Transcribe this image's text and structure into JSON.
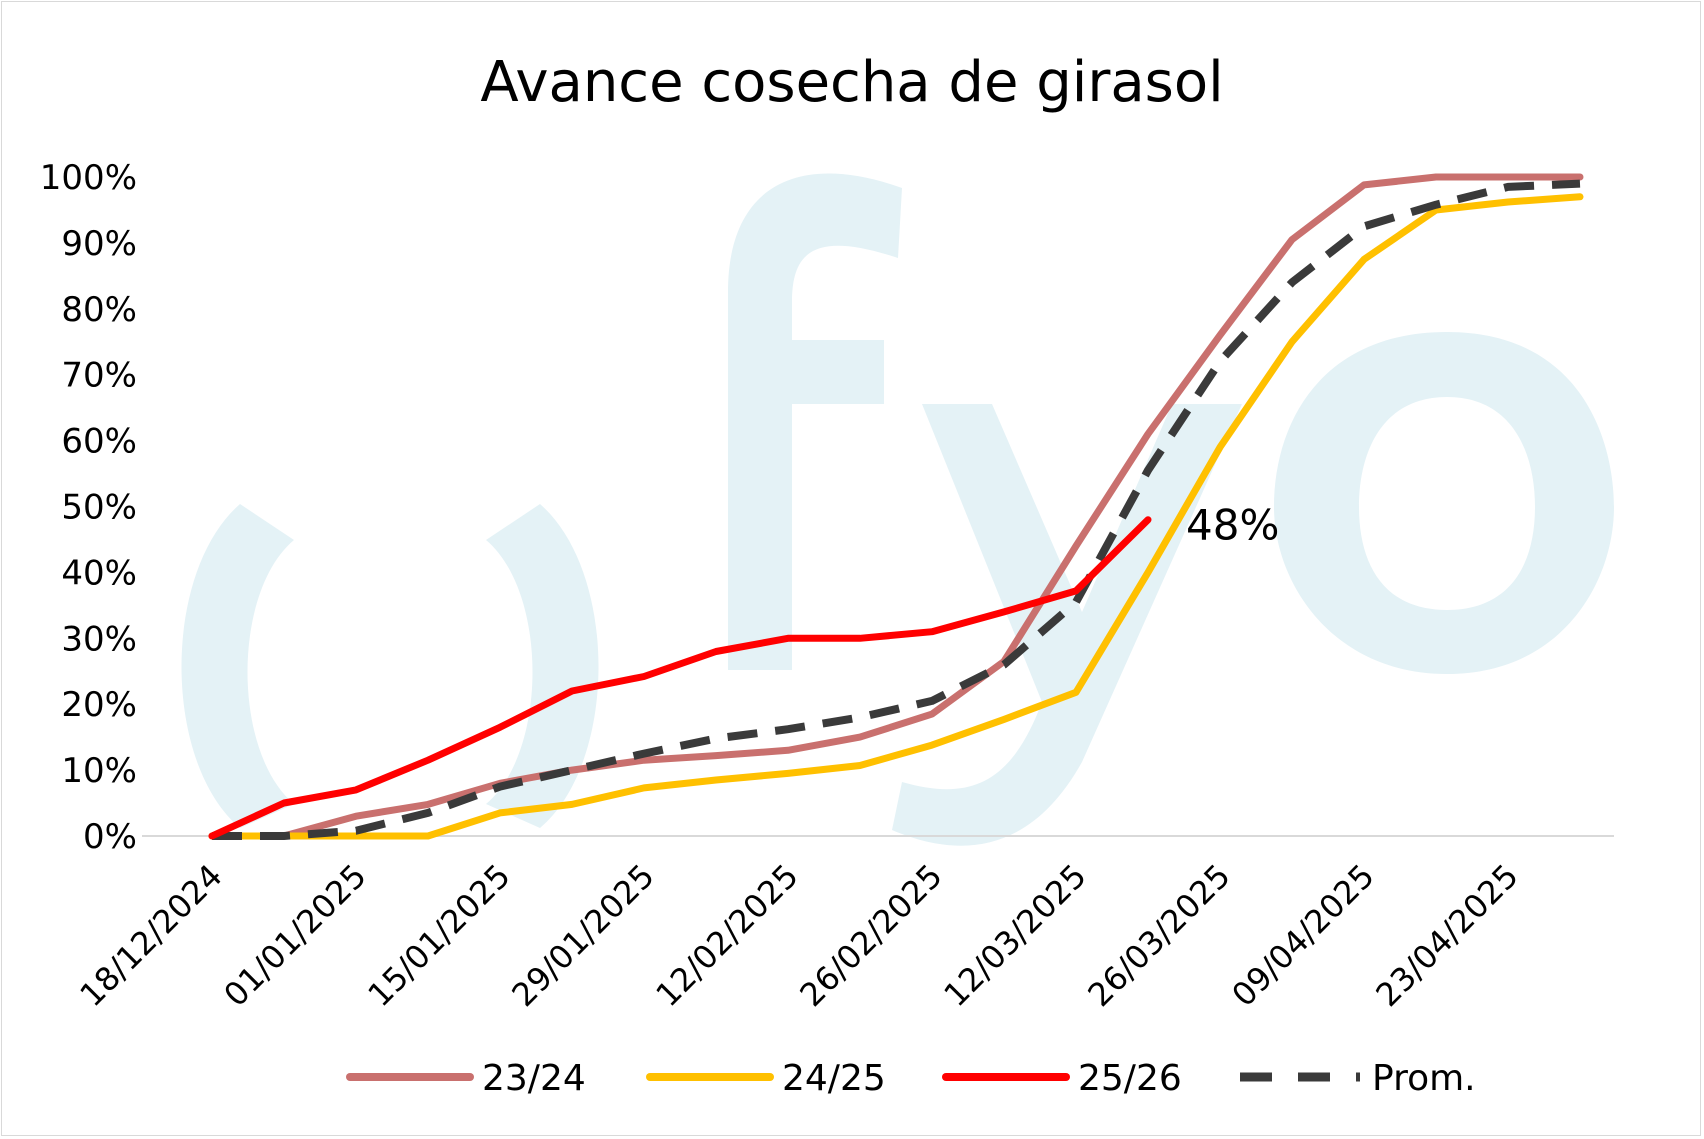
{
  "chart_data": {
    "type": "line",
    "title": "Avance cosecha de girasol",
    "xlabel": "",
    "ylabel": "",
    "ylim": [
      0,
      1
    ],
    "yticks": [
      "0%",
      "10%",
      "20%",
      "30%",
      "40%",
      "50%",
      "60%",
      "70%",
      "80%",
      "90%",
      "100%"
    ],
    "x": [
      "18/12/2024",
      "25/12/2024",
      "01/01/2025",
      "08/01/2025",
      "15/01/2025",
      "22/01/2025",
      "29/01/2025",
      "05/02/2025",
      "12/02/2025",
      "19/02/2025",
      "26/02/2025",
      "05/03/2025",
      "12/03/2025",
      "19/03/2025",
      "26/03/2025",
      "02/04/2025",
      "09/04/2025",
      "16/04/2025",
      "23/04/2025",
      "30/04/2025"
    ],
    "xticks": [
      "18/12/2024",
      "01/01/2025",
      "15/01/2025",
      "29/01/2025",
      "12/02/2025",
      "26/02/2025",
      "12/03/2025",
      "26/03/2025",
      "09/04/2025",
      "23/04/2025"
    ],
    "series": [
      {
        "name": "23/24",
        "color": "#c9706e",
        "dash": false,
        "values": [
          0.0,
          0.0,
          0.03,
          0.048,
          0.08,
          0.1,
          0.115,
          0.122,
          0.13,
          0.15,
          0.185,
          0.265,
          0.44,
          0.61,
          0.76,
          0.905,
          0.988,
          1.0,
          1.0,
          1.0
        ]
      },
      {
        "name": "24/25",
        "color": "#ffc000",
        "dash": false,
        "values": [
          0.0,
          0.0,
          0.0,
          0.0,
          0.035,
          0.048,
          0.073,
          0.085,
          0.095,
          0.107,
          0.138,
          0.177,
          0.218,
          0.4,
          0.59,
          0.75,
          0.875,
          0.95,
          0.962,
          0.97
        ]
      },
      {
        "name": "25/26",
        "color": "#ff0000",
        "dash": false,
        "values": [
          0.0,
          0.05,
          0.07,
          0.115,
          0.165,
          0.22,
          0.242,
          0.28,
          0.3,
          0.3,
          0.31,
          0.34,
          0.372,
          0.48,
          null,
          null,
          null,
          null,
          null,
          null
        ]
      },
      {
        "name": "Prom.",
        "color": "#3a3a3a",
        "dash": true,
        "values": [
          0.0,
          0.0,
          0.008,
          0.035,
          0.075,
          0.1,
          0.125,
          0.148,
          0.162,
          0.18,
          0.205,
          0.26,
          0.355,
          0.555,
          0.72,
          0.84,
          0.925,
          0.958,
          0.985,
          0.99
        ]
      }
    ],
    "annotation": {
      "text": "48%",
      "series": "25/26",
      "value": 0.48
    },
    "legend": "bottom",
    "grid": false,
    "watermark": "ofyo"
  }
}
